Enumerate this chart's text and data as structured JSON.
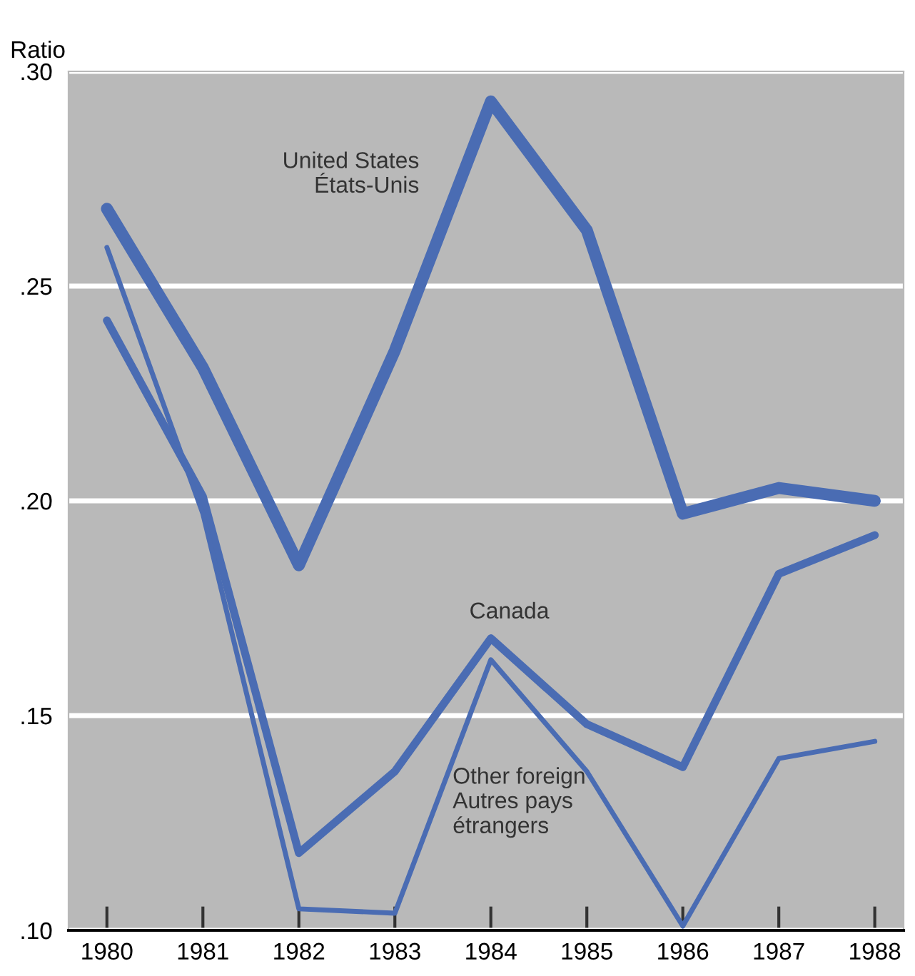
{
  "chart_data": {
    "type": "line",
    "ylabel": "Ratio",
    "x": [
      1980,
      1981,
      1982,
      1983,
      1984,
      1985,
      1986,
      1987,
      1988
    ],
    "series": [
      {
        "name": "United States\nÉtats-Unis",
        "color": "#4a6cb3",
        "values": [
          0.268,
          0.231,
          0.185,
          0.235,
          0.293,
          0.263,
          0.197,
          0.203,
          0.2
        ]
      },
      {
        "name": "Canada",
        "color": "#4a6cb3",
        "values": [
          0.242,
          0.201,
          0.118,
          0.137,
          0.168,
          0.148,
          0.138,
          0.183,
          0.192
        ]
      },
      {
        "name": "Other foreign\nAutres pays\nétrangers",
        "color": "#4a6cb3",
        "values": [
          0.259,
          0.197,
          0.105,
          0.104,
          0.163,
          0.137,
          0.101,
          0.14,
          0.144
        ]
      }
    ],
    "xlim": [
      1979.6,
      1988.3
    ],
    "ylim": [
      0.1,
      0.3
    ],
    "xticks": [
      1980,
      1981,
      1982,
      1983,
      1984,
      1985,
      1986,
      1987,
      1988
    ],
    "yticks": [
      {
        "value": 0.1,
        "label": ".10"
      },
      {
        "value": 0.15,
        "label": ".15"
      },
      {
        "value": 0.2,
        "label": ".20"
      },
      {
        "value": 0.25,
        "label": ".25"
      },
      {
        "value": 0.3,
        "label": ".30"
      }
    ],
    "grid": "y",
    "legend": false,
    "marker": "none",
    "line_style": "solid"
  }
}
